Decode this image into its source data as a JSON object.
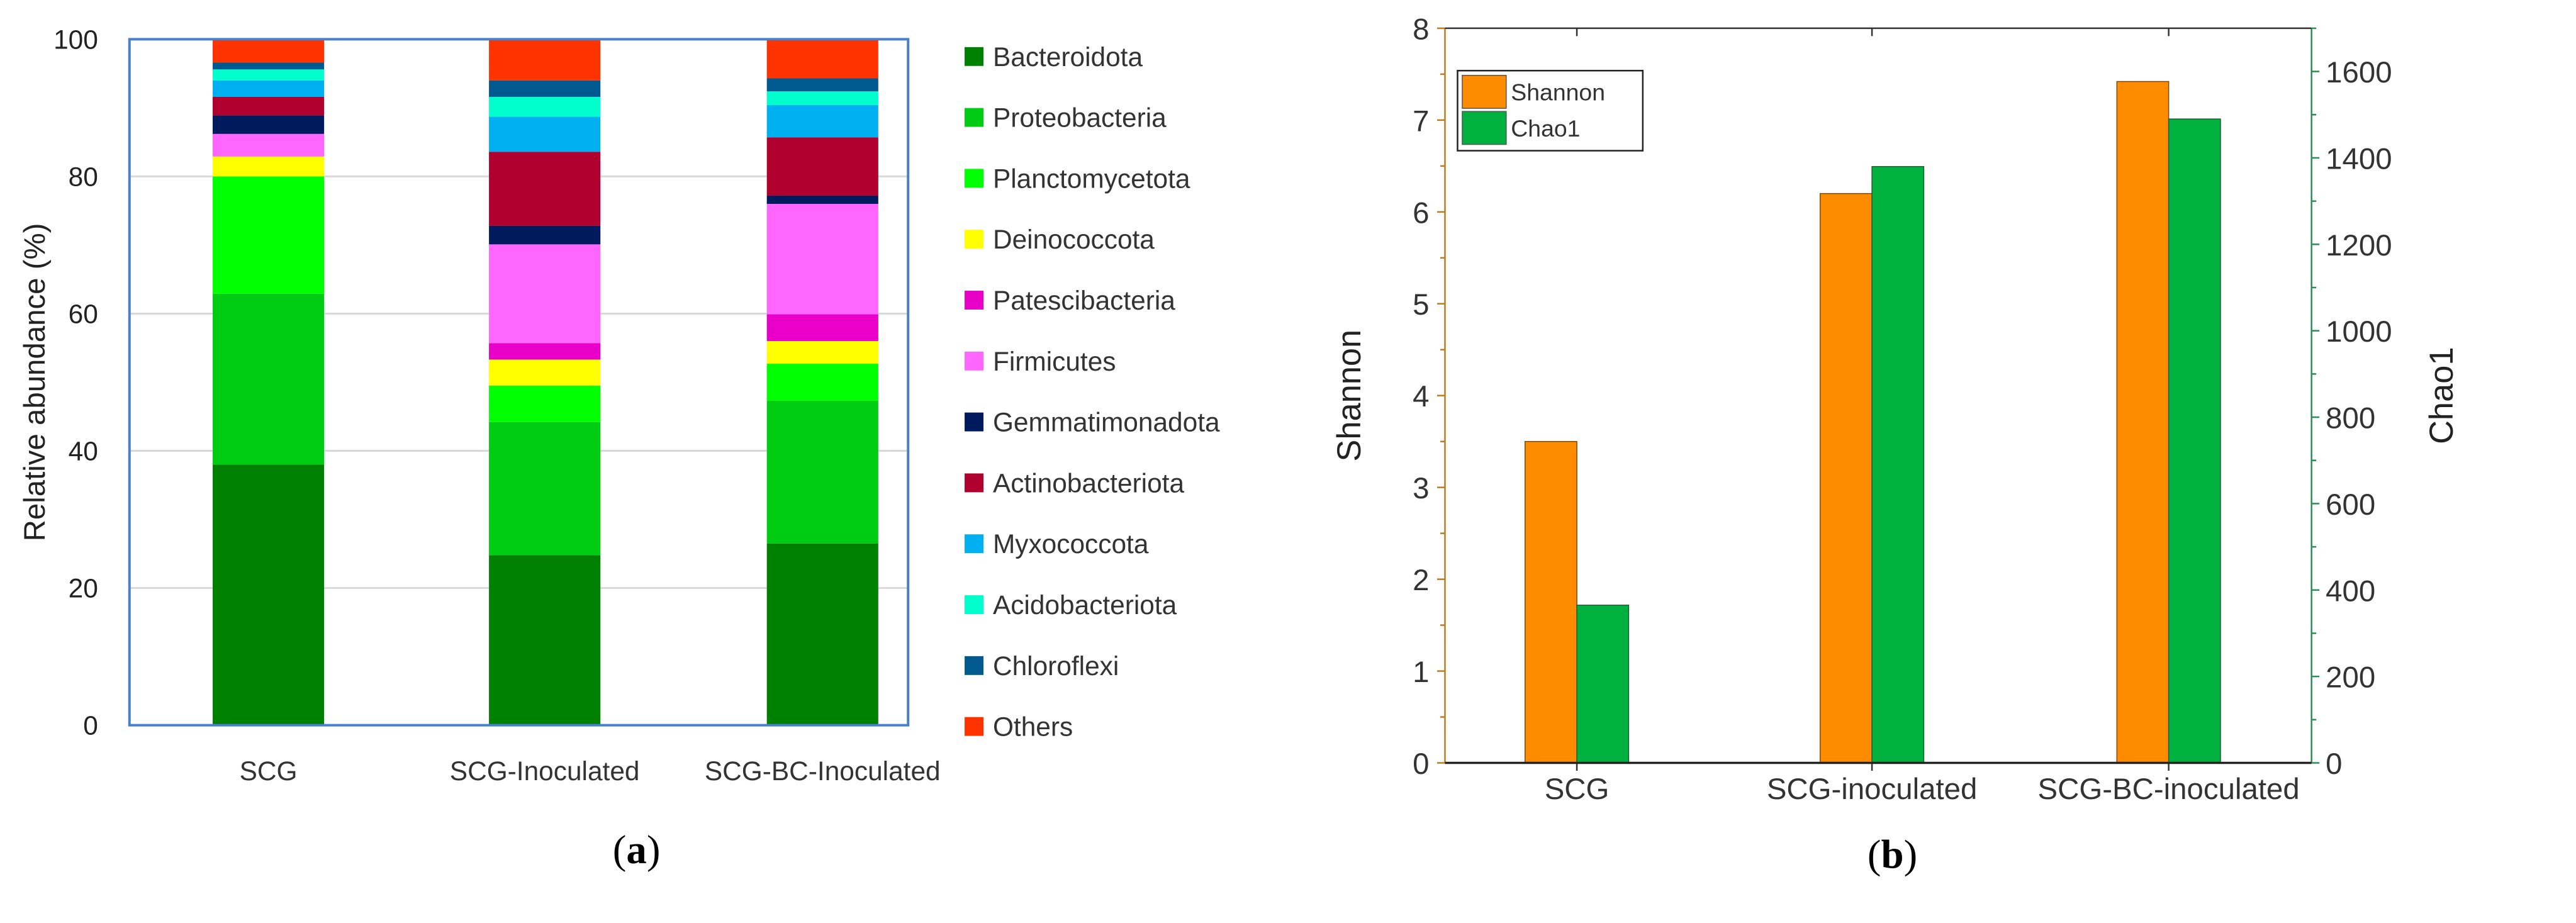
{
  "chart_data": [
    {
      "type": "bar",
      "stacked": true,
      "caption": "a",
      "title": "",
      "xlabel": "",
      "ylabel": "Relative abundance (%)",
      "ylim": [
        0,
        100
      ],
      "yticks": [
        "0",
        "20",
        "40",
        "60",
        "80",
        "100"
      ],
      "grid": true,
      "legend_position": "right",
      "categories": [
        "SCG",
        "SCG-Inoculated",
        "SCG-BC-Inoculated"
      ],
      "series": [
        {
          "name": "Bacteroidota",
          "color": "#008000",
          "values": [
            38.0,
            24.8,
            26.5
          ]
        },
        {
          "name": "Proteobacteria",
          "color": "#00CC14",
          "values": [
            24.9,
            19.4,
            20.8
          ]
        },
        {
          "name": "Planctomycetota",
          "color": "#00FF00",
          "values": [
            17.1,
            5.3,
            5.4
          ]
        },
        {
          "name": "Deinococcota",
          "color": "#FFFF00",
          "values": [
            2.9,
            3.8,
            3.3
          ]
        },
        {
          "name": "Patescibacteria",
          "color": "#E800C8",
          "values": [
            0,
            2.4,
            3.9
          ]
        },
        {
          "name": "Firmicutes",
          "color": "#FF66FF",
          "values": [
            3.3,
            14.4,
            16.1
          ]
        },
        {
          "name": "Gemmatimonadota",
          "color": "#001A5E",
          "values": [
            2.7,
            2.7,
            1.2
          ]
        },
        {
          "name": "Actinobacteriota",
          "color": "#B0002E",
          "values": [
            2.7,
            10.8,
            8.5
          ]
        },
        {
          "name": "Myxococcota",
          "color": "#00B0F0",
          "values": [
            2.4,
            5.1,
            4.7
          ]
        },
        {
          "name": "Acidobacteriota",
          "color": "#00FFCC",
          "values": [
            1.6,
            2.9,
            2.0
          ]
        },
        {
          "name": "Chloroflexi",
          "color": "#005A90",
          "values": [
            1.0,
            2.4,
            1.9
          ]
        },
        {
          "name": "Others",
          "color": "#FF3300",
          "values": [
            3.4,
            6.0,
            5.7
          ]
        }
      ]
    },
    {
      "type": "bar",
      "caption": "b",
      "title": "",
      "xlabel": "",
      "ylabel": "Shannon",
      "y2label": "Chao1",
      "ylim": [
        0,
        8
      ],
      "y2lim": [
        0,
        1700
      ],
      "yticks": [
        "0",
        "1",
        "2",
        "3",
        "4",
        "5",
        "6",
        "7",
        "8"
      ],
      "y2ticks": [
        "0",
        "200",
        "400",
        "600",
        "800",
        "1000",
        "1200",
        "1400",
        "1600"
      ],
      "grid": false,
      "legend_position": "top-left",
      "categories": [
        "SCG",
        "SCG-inoculated",
        "SCG-BC-inoculated"
      ],
      "series": [
        {
          "name": "Shannon",
          "axis": "left",
          "color": "#FF8C00",
          "values": [
            3.5,
            6.2,
            7.42
          ]
        },
        {
          "name": "Chao1",
          "axis": "right",
          "color": "#00B140",
          "values": [
            365,
            1380,
            1490
          ]
        }
      ]
    }
  ]
}
